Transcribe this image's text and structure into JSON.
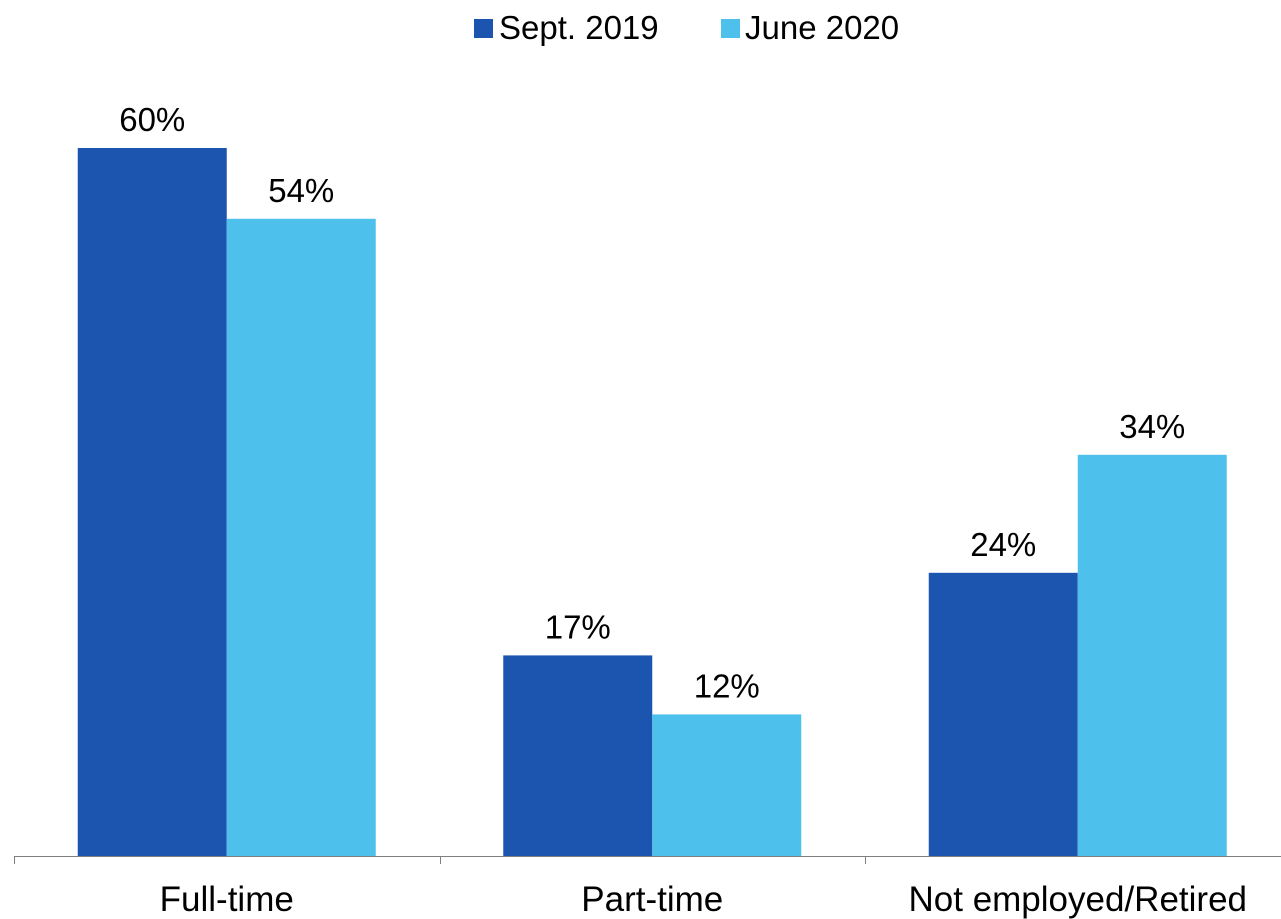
{
  "chart_data": {
    "type": "bar",
    "categories": [
      "Full-time",
      "Part-time",
      "Not employed/Retired"
    ],
    "series": [
      {
        "name": "Sept. 2019",
        "values": [
          60,
          17,
          24
        ],
        "labels": [
          "60%",
          "17%",
          "24%"
        ],
        "color": "#1C55B0"
      },
      {
        "name": "June 2020",
        "values": [
          54,
          12,
          34
        ],
        "labels": [
          "54%",
          "12%",
          "34%"
        ],
        "color": "#4DC1EC"
      }
    ],
    "ylim": [
      0,
      60
    ],
    "grid": false,
    "legend_position": "top-center",
    "axis_color": "#7f7f7f"
  }
}
